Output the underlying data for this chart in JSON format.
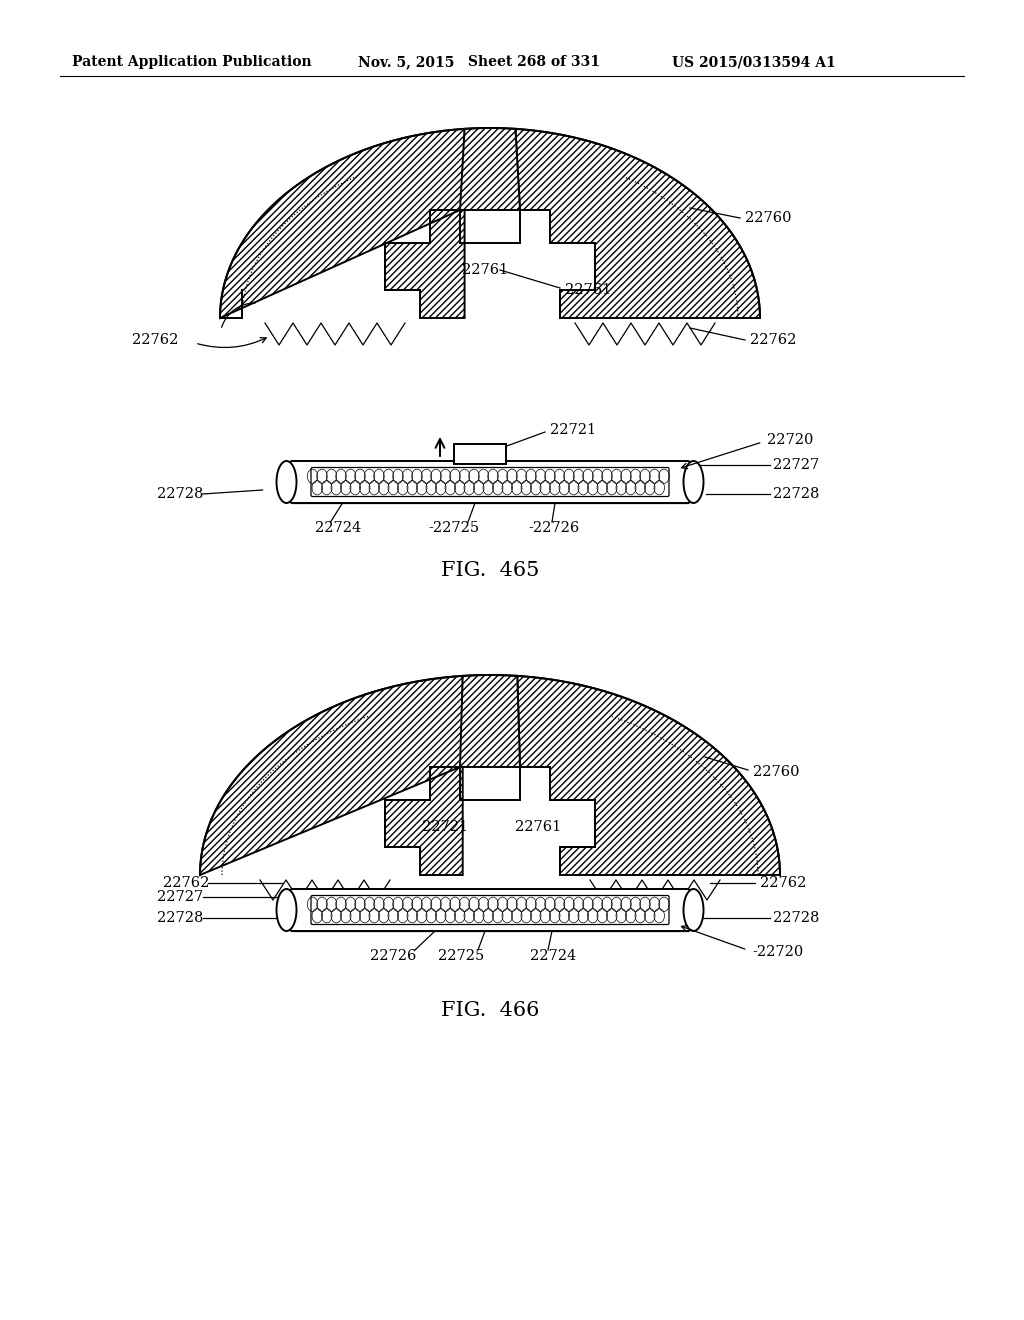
{
  "background_color": "#ffffff",
  "header_text": "Patent Application Publication",
  "header_date": "Nov. 5, 2015",
  "header_sheet": "Sheet 268 of 331",
  "header_patent": "US 2015/0313594 A1",
  "fig1_title": "FIG.  465",
  "fig2_title": "FIG.  466",
  "line_color": "#000000",
  "label_fontsize": 10.5,
  "title_fontsize": 15,
  "header_fontsize": 10
}
